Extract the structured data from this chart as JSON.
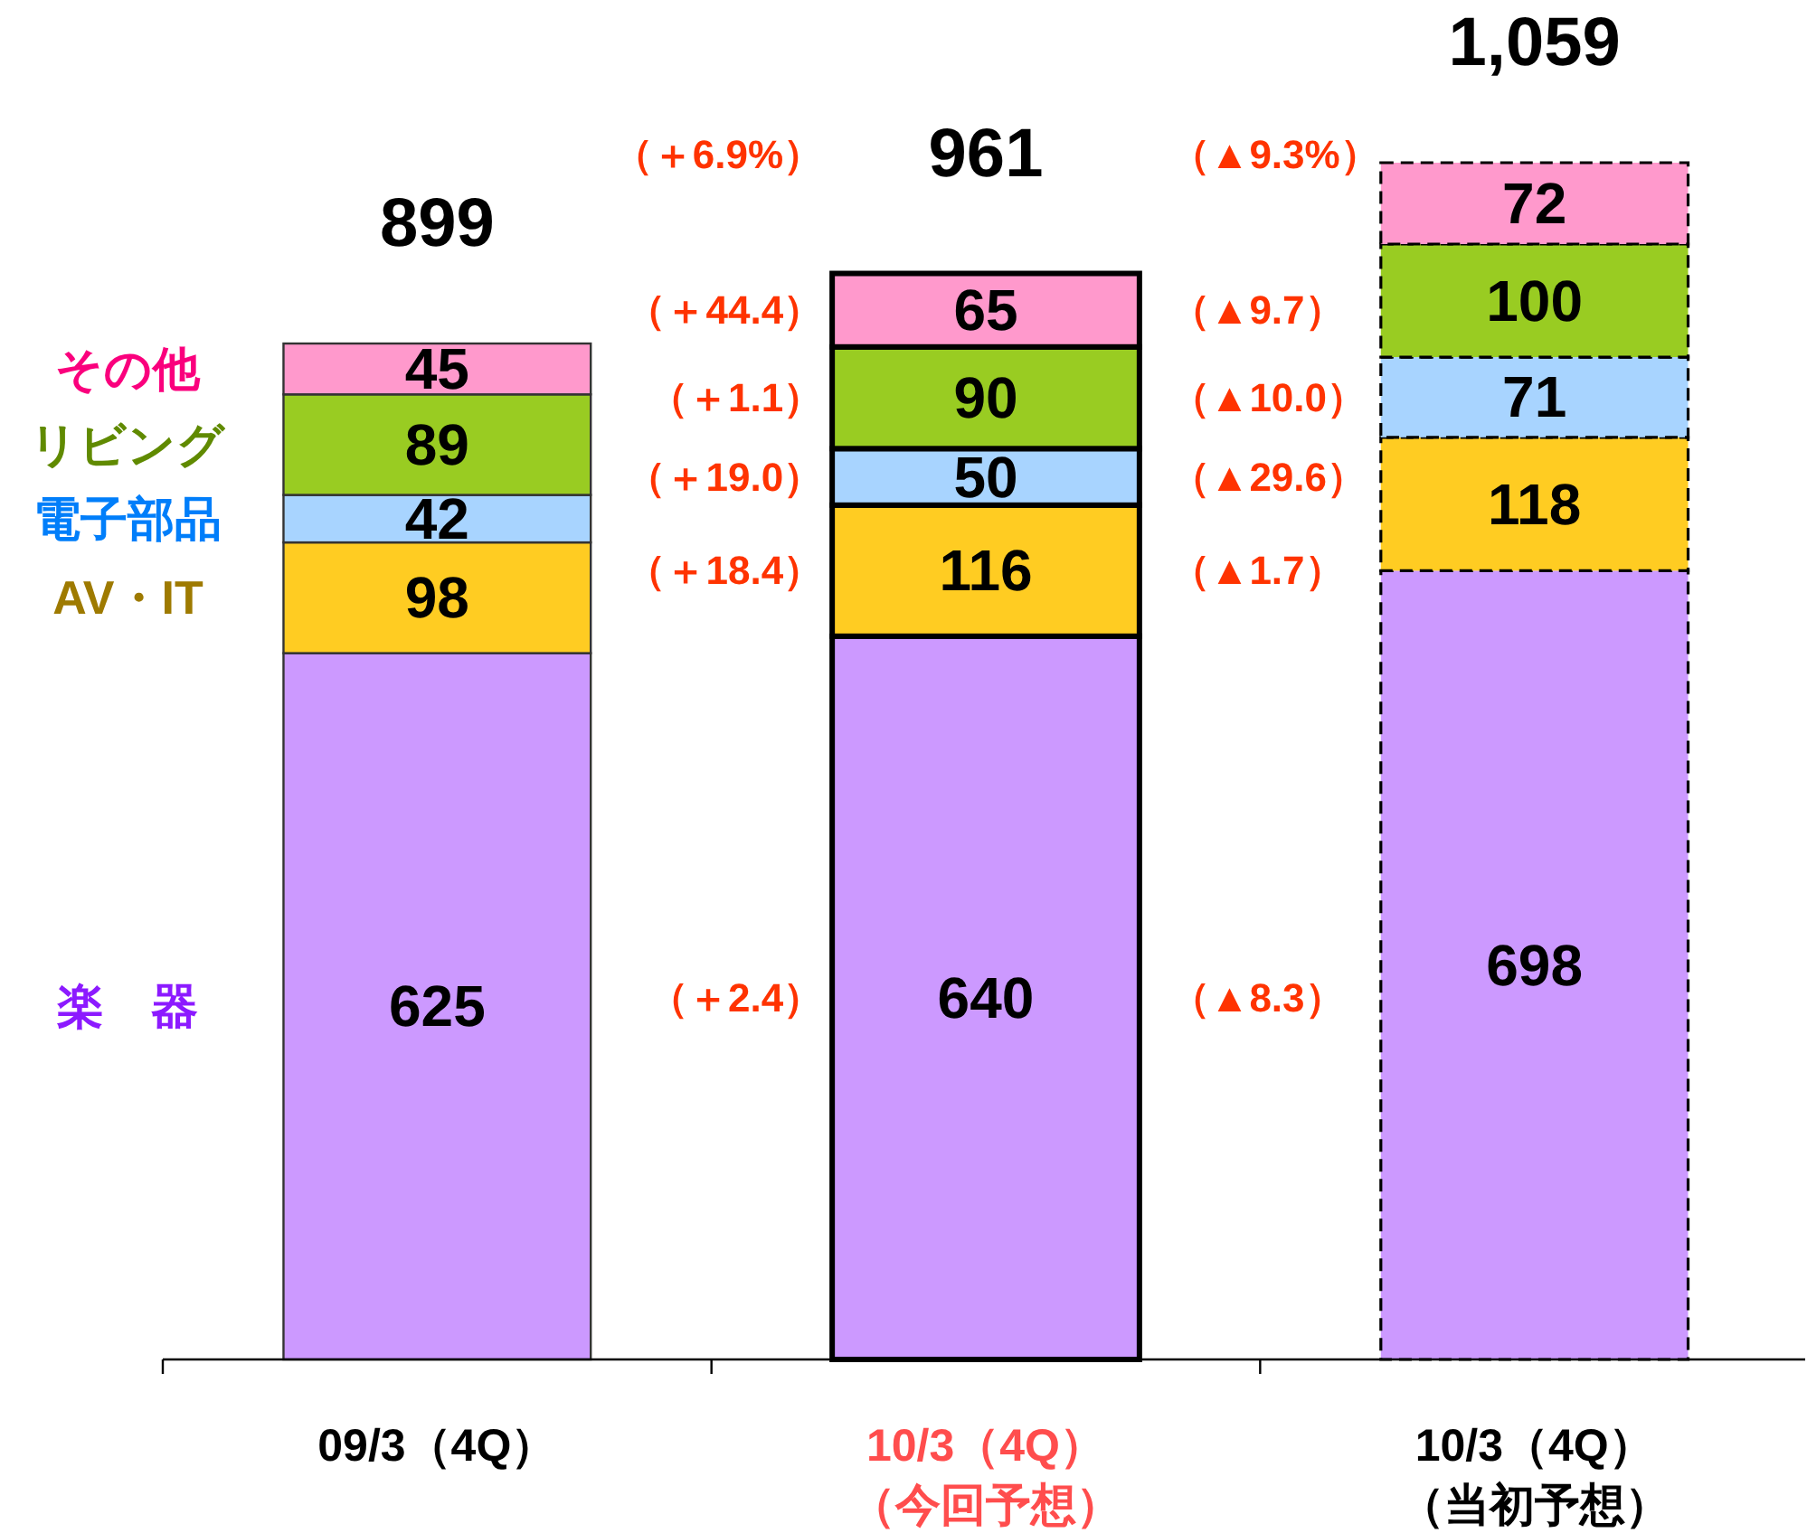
{
  "chart_data": {
    "type": "bar",
    "stacked": true,
    "categories": [
      "09/3（4Q）",
      "10/3（4Q）（今回予想）",
      "10/3（4Q）（当初予想）"
    ],
    "series": [
      {
        "name": "楽　器",
        "color": "#cc99ff",
        "values": [
          625,
          640,
          698
        ]
      },
      {
        "name": "AV・IT",
        "color": "#ffcc22",
        "values": [
          98,
          116,
          118
        ]
      },
      {
        "name": "電子部品",
        "color": "#a8d4ff",
        "values": [
          42,
          50,
          71
        ]
      },
      {
        "name": "リビング",
        "color": "#99cc22",
        "values": [
          89,
          90,
          100
        ]
      },
      {
        "name": "その他",
        "color": "#ff99cc",
        "values": [
          45,
          65,
          72
        ]
      }
    ],
    "data_labels": true,
    "totals": [
      "899",
      "961",
      "1,059"
    ],
    "annotations": [
      "（＋2.4）",
      "（＋18.4）",
      "（＋19.0）",
      "（＋1.1）",
      "（＋44.4）",
      "（＋6.9%）",
      "（▲8.3）",
      "（▲1.7）",
      "（▲29.6）",
      "（▲10.0）",
      "（▲9.7）",
      "（▲9.3%）"
    ]
  }
}
